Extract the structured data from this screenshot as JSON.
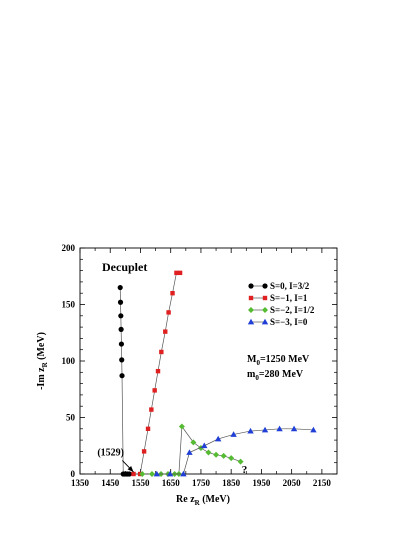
{
  "chart_data": {
    "type": "line",
    "title": "Decuplet",
    "xlabel": "Re z",
    "xlabel_sub": "R",
    "xlabel_unit": " (MeV)",
    "ylabel": "-Im z",
    "ylabel_sub": "R",
    "ylabel_unit": " (MeV)",
    "xlim": [
      1350,
      2200
    ],
    "ylim": [
      0,
      200
    ],
    "x_ticks": [
      1350,
      1450,
      1550,
      1650,
      1750,
      1850,
      1950,
      2050,
      2150
    ],
    "y_ticks": [
      0,
      50,
      100,
      150,
      200
    ],
    "grid": false,
    "legend_position": "top-right",
    "annotations": {
      "question_mark": "?",
      "label_1529": "(1529)",
      "mass_text_1_main": "M",
      "mass_text_1_sub": "0",
      "mass_text_1_rest": "=1250 MeV",
      "mass_text_2_main": "m",
      "mass_text_2_sub": "0",
      "mass_text_2_rest": "=280 MeV",
      "question_mark_at": [
        1885,
        8
      ],
      "label_1529_at": [
        1447,
        18
      ],
      "arrow_from": [
        1490,
        12
      ],
      "arrow_to": [
        1527,
        0
      ]
    },
    "series": [
      {
        "name": "S=0, I=3/2",
        "color": "#000000",
        "marker": "circle",
        "x": [
          1483,
          1484,
          1485,
          1486,
          1487,
          1488,
          1489,
          1493,
          1499,
          1506,
          1513
        ],
        "y": [
          165,
          152,
          140,
          128,
          115,
          101,
          87,
          0,
          0,
          0,
          0
        ]
      },
      {
        "name": "S=−1, I=1",
        "color": "#e02020",
        "marker": "square",
        "x": [
          1527,
          1549,
          1562,
          1575,
          1586,
          1597,
          1608,
          1619,
          1632,
          1643,
          1656,
          1669,
          1681
        ],
        "y": [
          0,
          0,
          20,
          40,
          57,
          74,
          91,
          108,
          126,
          143,
          160,
          178,
          178
        ]
      },
      {
        "name": "S=−2, I=1/2",
        "color": "#55bb33",
        "marker": "diamond",
        "x": [
          1556,
          1588,
          1618,
          1641,
          1663,
          1677,
          1687,
          1725,
          1750,
          1775,
          1800,
          1825,
          1850,
          1881
        ],
        "y": [
          0,
          0,
          0,
          0,
          0,
          0,
          42,
          28,
          23,
          19,
          17,
          16,
          14,
          11
        ]
      },
      {
        "name": "S=−3, I=0",
        "color": "#1f3fd6",
        "marker": "triangle",
        "x": [
          1604,
          1648,
          1692,
          1712,
          1761,
          1807,
          1858,
          1914,
          1962,
          2010,
          2058,
          2122
        ],
        "y": [
          0,
          0,
          0,
          19,
          25,
          31,
          35,
          38,
          39,
          40,
          40,
          39
        ]
      }
    ]
  }
}
